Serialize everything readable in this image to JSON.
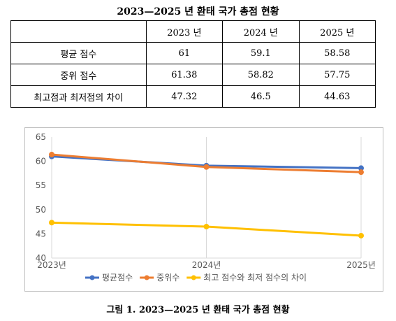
{
  "table": {
    "title": "2023—2025 년 환태 국가 총점 현황",
    "col_headers": [
      "2023 년",
      "2024 년",
      "2025 년"
    ],
    "rows": [
      {
        "label": "평균 점수",
        "values": [
          "61",
          "59.1",
          "58.58"
        ]
      },
      {
        "label": "중위 점수",
        "values": [
          "61.38",
          "58.82",
          "57.75"
        ]
      },
      {
        "label": "최고점과 최저점의 차이",
        "values": [
          "47.32",
          "46.5",
          "44.63"
        ]
      }
    ]
  },
  "chart_data": {
    "type": "line",
    "categories": [
      "2023년",
      "2024년",
      "2025년"
    ],
    "series": [
      {
        "name": "평균점수",
        "values": [
          61,
          59.1,
          58.58
        ],
        "color": "#4472C4"
      },
      {
        "name": "중위수",
        "values": [
          61.38,
          58.82,
          57.75
        ],
        "color": "#ED7D31"
      },
      {
        "name": "최고 점수와 최저 점수의 차이",
        "values": [
          47.32,
          46.5,
          44.63
        ],
        "color": "#FFC000"
      }
    ],
    "yticks": [
      40,
      45,
      50,
      55,
      60,
      65
    ],
    "ylim": [
      40,
      65
    ],
    "grid": "vertical",
    "legend": "bottom"
  },
  "caption": "그림 1. 2023—2025 년 환태 국가 총점 현황"
}
